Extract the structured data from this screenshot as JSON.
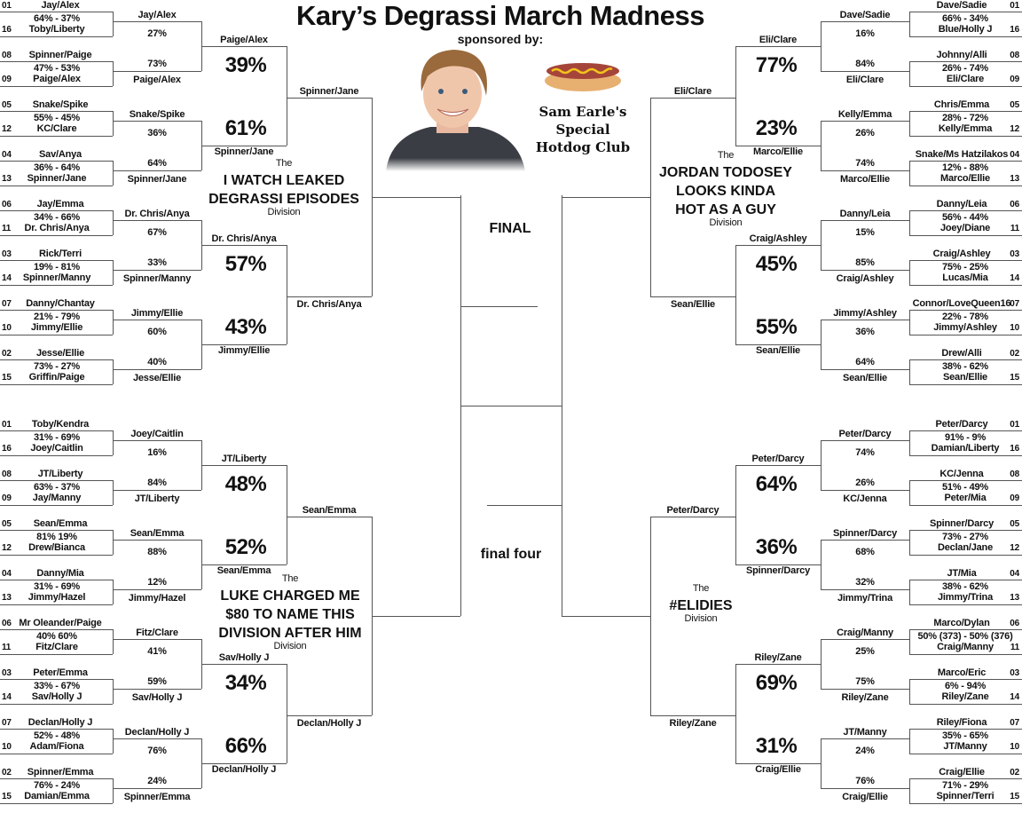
{
  "header": {
    "title": "Kary’s Degrassi March Madness",
    "sponsor_label": "sponsored by:",
    "sponsor_club": [
      "Sam Earle's",
      "Special",
      "Hotdog Club"
    ]
  },
  "center": {
    "final_label": "FINAL",
    "final_four_label": "final four"
  },
  "quadrants": [
    {
      "id": "left-top",
      "division": {
        "the": "The",
        "name": [
          "I WATCH LEAKED",
          "DEGRASSI EPISODES"
        ],
        "suffix": "Division"
      },
      "r1": [
        {
          "seed_a": "01",
          "team_a": "Jay/Alex",
          "score": "64% - 37%",
          "seed_b": "16",
          "team_b": "Toby/Liberty"
        },
        {
          "seed_a": "08",
          "team_a": "Spinner/Paige",
          "score": "47% - 53%",
          "seed_b": "09",
          "team_b": "Paige/Alex"
        },
        {
          "seed_a": "05",
          "team_a": "Snake/Spike",
          "score": "55% - 45%",
          "seed_b": "12",
          "team_b": "KC/Clare"
        },
        {
          "seed_a": "04",
          "team_a": "Sav/Anya",
          "score": "36% - 64%",
          "seed_b": "13",
          "team_b": "Spinner/Jane"
        },
        {
          "seed_a": "06",
          "team_a": "Jay/Emma",
          "score": "34% - 66%",
          "seed_b": "11",
          "team_b": "Dr. Chris/Anya"
        },
        {
          "seed_a": "03",
          "team_a": "Rick/Terri",
          "score": "19% - 81%",
          "seed_b": "14",
          "team_b": "Spinner/Manny"
        },
        {
          "seed_a": "07",
          "team_a": "Danny/Chantay",
          "score": "21% - 79%",
          "seed_b": "10",
          "team_b": "Jimmy/Ellie"
        },
        {
          "seed_a": "02",
          "team_a": "Jesse/Ellie",
          "score": "73% - 27%",
          "seed_b": "15",
          "team_b": "Griffin/Paige"
        }
      ],
      "r2": [
        {
          "top": {
            "team": "Jay/Alex",
            "pct": "27%"
          },
          "bottom": {
            "team": "Paige/Alex",
            "pct": "73%"
          }
        },
        {
          "top": {
            "team": "Snake/Spike",
            "pct": "36%"
          },
          "bottom": {
            "team": "Spinner/Jane",
            "pct": "64%"
          }
        },
        {
          "top": {
            "team": "Dr. Chris/Anya",
            "pct": "67%"
          },
          "bottom": {
            "team": "Spinner/Manny",
            "pct": "33%"
          }
        },
        {
          "top": {
            "team": "Jimmy/Ellie",
            "pct": "60%"
          },
          "bottom": {
            "team": "Jesse/Ellie",
            "pct": "40%"
          }
        }
      ],
      "r3": [
        {
          "top": {
            "team": "Paige/Alex",
            "pct": "39%"
          },
          "bottom": {
            "team": "Spinner/Jane",
            "pct": "61%"
          }
        },
        {
          "top": {
            "team": "Dr. Chris/Anya",
            "pct": "57%"
          },
          "bottom": {
            "team": "Jimmy/Ellie",
            "pct": "43%"
          }
        }
      ],
      "r4": {
        "top": "Spinner/Jane",
        "bottom": "Dr. Chris/Anya"
      }
    },
    {
      "id": "left-bottom",
      "division": {
        "the": "The",
        "name": [
          "LUKE CHARGED ME",
          "$80 TO NAME THIS",
          "DIVISION AFTER HIM"
        ],
        "suffix": "Division"
      },
      "r1": [
        {
          "seed_a": "01",
          "team_a": "Toby/Kendra",
          "score": "31% - 69%",
          "seed_b": "16",
          "team_b": "Joey/Caitlin"
        },
        {
          "seed_a": "08",
          "team_a": "JT/Liberty",
          "score": "63% - 37%",
          "seed_b": "09",
          "team_b": "Jay/Manny"
        },
        {
          "seed_a": "05",
          "team_a": "Sean/Emma",
          "score": "81% 19%",
          "seed_b": "12",
          "team_b": "Drew/Bianca"
        },
        {
          "seed_a": "04",
          "team_a": "Danny/Mia",
          "score": "31% - 69%",
          "seed_b": "13",
          "team_b": "Jimmy/Hazel"
        },
        {
          "seed_a": "06",
          "team_a": "Mr Oleander/Paige",
          "score": "40% 60%",
          "seed_b": "11",
          "team_b": "Fitz/Clare"
        },
        {
          "seed_a": "03",
          "team_a": "Peter/Emma",
          "score": "33% - 67%",
          "seed_b": "14",
          "team_b": "Sav/Holly J"
        },
        {
          "seed_a": "07",
          "team_a": "Declan/Holly J",
          "score": "52% - 48%",
          "seed_b": "10",
          "team_b": "Adam/Fiona"
        },
        {
          "seed_a": "02",
          "team_a": "Spinner/Emma",
          "score": "76% - 24%",
          "seed_b": "15",
          "team_b": "Damian/Emma"
        }
      ],
      "r2": [
        {
          "top": {
            "team": "Joey/Caitlin",
            "pct": "16%"
          },
          "bottom": {
            "team": "JT/Liberty",
            "pct": "84%"
          }
        },
        {
          "top": {
            "team": "Sean/Emma",
            "pct": "88%"
          },
          "bottom": {
            "team": "Jimmy/Hazel",
            "pct": "12%"
          }
        },
        {
          "top": {
            "team": "Fitz/Clare",
            "pct": "41%"
          },
          "bottom": {
            "team": "Sav/Holly J",
            "pct": "59%"
          }
        },
        {
          "top": {
            "team": "Declan/Holly J",
            "pct": "76%"
          },
          "bottom": {
            "team": "Spinner/Emma",
            "pct": "24%"
          }
        }
      ],
      "r3": [
        {
          "top": {
            "team": "JT/Liberty",
            "pct": "48%"
          },
          "bottom": {
            "team": "Sean/Emma",
            "pct": "52%"
          }
        },
        {
          "top": {
            "team": "Sav/Holly J",
            "pct": "34%"
          },
          "bottom": {
            "team": "Declan/Holly J",
            "pct": "66%"
          }
        }
      ],
      "r4": {
        "top": "Sean/Emma",
        "bottom": "Declan/Holly J"
      }
    },
    {
      "id": "right-top",
      "division": {
        "the": "The",
        "name": [
          "JORDAN TODOSEY",
          "LOOKS KINDA",
          "HOT AS A GUY"
        ],
        "suffix": "Division"
      },
      "r1": [
        {
          "seed_a": "01",
          "team_a": "Dave/Sadie",
          "score": "66% - 34%",
          "seed_b": "16",
          "team_b": "Blue/Holly J"
        },
        {
          "seed_a": "08",
          "team_a": "Johnny/Alli",
          "score": "26% - 74%",
          "seed_b": "09",
          "team_b": "Eli/Clare"
        },
        {
          "seed_a": "05",
          "team_a": "Chris/Emma",
          "score": "28% - 72%",
          "seed_b": "12",
          "team_b": "Kelly/Emma"
        },
        {
          "seed_a": "04",
          "team_a": "Snake/Ms Hatzilakos",
          "score": "12% - 88%",
          "seed_b": "13",
          "team_b": "Marco/Ellie"
        },
        {
          "seed_a": "06",
          "team_a": "Danny/Leia",
          "score": "56% - 44%",
          "seed_b": "11",
          "team_b": "Joey/Diane"
        },
        {
          "seed_a": "03",
          "team_a": "Craig/Ashley",
          "score": "75% - 25%",
          "seed_b": "14",
          "team_b": "Lucas/Mia"
        },
        {
          "seed_a": "07",
          "team_a": "Connor/LoveQueen16",
          "score": "22% - 78%",
          "seed_b": "10",
          "team_b": "Jimmy/Ashley"
        },
        {
          "seed_a": "02",
          "team_a": "Drew/Alli",
          "score": "38% - 62%",
          "seed_b": "15",
          "team_b": "Sean/Ellie"
        }
      ],
      "r2": [
        {
          "top": {
            "team": "Dave/Sadie",
            "pct": "16%"
          },
          "bottom": {
            "team": "Eli/Clare",
            "pct": "84%"
          }
        },
        {
          "top": {
            "team": "Kelly/Emma",
            "pct": "26%"
          },
          "bottom": {
            "team": "Marco/Ellie",
            "pct": "74%"
          }
        },
        {
          "top": {
            "team": "Danny/Leia",
            "pct": "15%"
          },
          "bottom": {
            "team": "Craig/Ashley",
            "pct": "85%"
          }
        },
        {
          "top": {
            "team": "Jimmy/Ashley",
            "pct": "36%"
          },
          "bottom": {
            "team": "Sean/Ellie",
            "pct": "64%"
          }
        }
      ],
      "r3": [
        {
          "top": {
            "team": "Eli/Clare",
            "pct": "77%"
          },
          "bottom": {
            "team": "Marco/Ellie",
            "pct": "23%"
          }
        },
        {
          "top": {
            "team": "Craig/Ashley",
            "pct": "45%"
          },
          "bottom": {
            "team": "Sean/Ellie",
            "pct": "55%"
          }
        }
      ],
      "r4": {
        "top": "Eli/Clare",
        "bottom": "Sean/Ellie"
      }
    },
    {
      "id": "right-bottom",
      "division": {
        "the": "The",
        "name": [
          "#ELIDIES"
        ],
        "suffix": "Division"
      },
      "r1": [
        {
          "seed_a": "01",
          "team_a": "Peter/Darcy",
          "score": "91% - 9%",
          "seed_b": "16",
          "team_b": "Damian/Liberty"
        },
        {
          "seed_a": "08",
          "team_a": "KC/Jenna",
          "score": "51% - 49%",
          "seed_b": "09",
          "team_b": "Peter/Mia"
        },
        {
          "seed_a": "05",
          "team_a": "Spinner/Darcy",
          "score": "73% - 27%",
          "seed_b": "12",
          "team_b": "Declan/Jane"
        },
        {
          "seed_a": "04",
          "team_a": "JT/Mia",
          "score": "38% - 62%",
          "seed_b": "13",
          "team_b": "Jimmy/Trina"
        },
        {
          "seed_a": "06",
          "team_a": "Marco/Dylan",
          "score": "50% (373) - 50% (376)",
          "seed_b": "11",
          "team_b": "Craig/Manny"
        },
        {
          "seed_a": "03",
          "team_a": "Marco/Eric",
          "score": "6% - 94%",
          "seed_b": "14",
          "team_b": "Riley/Zane"
        },
        {
          "seed_a": "07",
          "team_a": "Riley/Fiona",
          "score": "35% - 65%",
          "seed_b": "10",
          "team_b": "JT/Manny"
        },
        {
          "seed_a": "02",
          "team_a": "Craig/Ellie",
          "score": "71% - 29%",
          "seed_b": "15",
          "team_b": "Spinner/Terri"
        }
      ],
      "r2": [
        {
          "top": {
            "team": "Peter/Darcy",
            "pct": "74%"
          },
          "bottom": {
            "team": "KC/Jenna",
            "pct": "26%"
          }
        },
        {
          "top": {
            "team": "Spinner/Darcy",
            "pct": "68%"
          },
          "bottom": {
            "team": "Jimmy/Trina",
            "pct": "32%"
          }
        },
        {
          "top": {
            "team": "Craig/Manny",
            "pct": "25%"
          },
          "bottom": {
            "team": "Riley/Zane",
            "pct": "75%"
          }
        },
        {
          "top": {
            "team": "JT/Manny",
            "pct": "24%"
          },
          "bottom": {
            "team": "Craig/Ellie",
            "pct": "76%"
          }
        }
      ],
      "r3": [
        {
          "top": {
            "team": "Peter/Darcy",
            "pct": "64%"
          },
          "bottom": {
            "team": "Spinner/Darcy",
            "pct": "36%"
          }
        },
        {
          "top": {
            "team": "Riley/Zane",
            "pct": "69%"
          },
          "bottom": {
            "team": "Craig/Ellie",
            "pct": "31%"
          }
        }
      ],
      "r4": {
        "top": "Peter/Darcy",
        "bottom": "Riley/Zane"
      }
    }
  ],
  "icons": {
    "sponsor_photo": "person-photo",
    "hotdog": "hotdog-icon"
  },
  "colors": {
    "lines": "#555555",
    "text": "#111111",
    "background": "#ffffff"
  }
}
